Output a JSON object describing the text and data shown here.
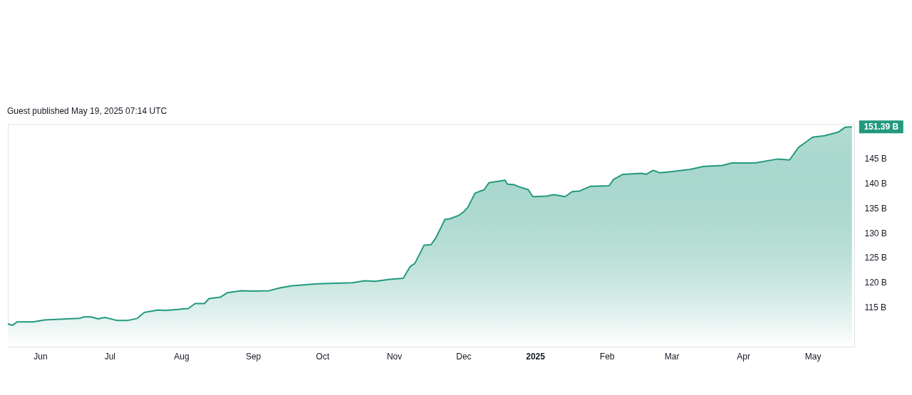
{
  "chart_data": {
    "type": "area",
    "annotations": [
      "Guest published May 19, 2025 07:14 UTC",
      {
        "text": "151.39 B",
        "x": "2025-05-18",
        "y": 151.39
      }
    ],
    "x": [
      "2024-05-18",
      "2024-05-20",
      "2024-05-22",
      "2024-05-29",
      "2024-06-03",
      "2024-06-18",
      "2024-06-20",
      "2024-06-23",
      "2024-06-26",
      "2024-06-29",
      "2024-07-04",
      "2024-07-09",
      "2024-07-13",
      "2024-07-16",
      "2024-07-22",
      "2024-07-25",
      "2024-08-04",
      "2024-08-07",
      "2024-08-11",
      "2024-08-13",
      "2024-08-18",
      "2024-08-21",
      "2024-08-27",
      "2024-09-01",
      "2024-09-08",
      "2024-09-13",
      "2024-09-18",
      "2024-09-29",
      "2024-10-14",
      "2024-10-19",
      "2024-10-24",
      "2024-10-30",
      "2024-11-05",
      "2024-11-08",
      "2024-11-10",
      "2024-11-14",
      "2024-11-17",
      "2024-11-19",
      "2024-11-23",
      "2024-11-25",
      "2024-11-29",
      "2024-12-01",
      "2024-12-03",
      "2024-12-06",
      "2024-12-10",
      "2024-12-12",
      "2024-12-16",
      "2024-12-19",
      "2024-12-20",
      "2024-12-23",
      "2024-12-25",
      "2024-12-29",
      "2024-12-31",
      "2025-01-06",
      "2025-01-09",
      "2025-01-14",
      "2025-01-17",
      "2025-01-20",
      "2025-01-25",
      "2025-02-02",
      "2025-02-04",
      "2025-02-08",
      "2025-02-16",
      "2025-02-18",
      "2025-02-21",
      "2025-02-24",
      "2025-02-28",
      "2025-03-09",
      "2025-03-15",
      "2025-03-23",
      "2025-03-27",
      "2025-04-06",
      "2025-04-16",
      "2025-04-21",
      "2025-04-25",
      "2025-04-28",
      "2025-05-01",
      "2025-05-06",
      "2025-05-12",
      "2025-05-15",
      "2025-05-18"
    ],
    "series": [
      {
        "color": "#22997e",
        "values": [
          111.6,
          111.3,
          112.0,
          112.0,
          112.4,
          112.7,
          113.0,
          113.0,
          112.6,
          112.9,
          112.3,
          112.3,
          112.7,
          113.9,
          114.4,
          114.3,
          114.7,
          115.7,
          115.7,
          116.7,
          117.0,
          117.9,
          118.3,
          118.2,
          118.3,
          118.9,
          119.3,
          119.7,
          119.9,
          120.3,
          120.2,
          120.6,
          120.8,
          123.2,
          123.8,
          127.5,
          127.6,
          128.9,
          132.7,
          132.8,
          133.5,
          134.2,
          135.2,
          138.0,
          138.7,
          140.1,
          140.4,
          140.6,
          139.8,
          139.7,
          139.3,
          138.7,
          137.3,
          137.4,
          137.7,
          137.3,
          138.3,
          138.4,
          139.4,
          139.5,
          140.8,
          141.8,
          142.0,
          141.8,
          142.6,
          142.1,
          142.3,
          142.8,
          143.4,
          143.6,
          144.1,
          144.1,
          144.9,
          144.7,
          147.3,
          148.3,
          149.3,
          149.6,
          150.3,
          151.3,
          151.39
        ]
      }
    ],
    "xlim": [
      "2024-05-18",
      "2025-05-19"
    ],
    "xticks": [
      {
        "value": "2024-06-01",
        "label": "Jun"
      },
      {
        "value": "2024-07-01",
        "label": "Jul"
      },
      {
        "value": "2024-08-01",
        "label": "Aug"
      },
      {
        "value": "2024-09-01",
        "label": "Sep"
      },
      {
        "value": "2024-10-01",
        "label": "Oct"
      },
      {
        "value": "2024-11-01",
        "label": "Nov"
      },
      {
        "value": "2024-12-01",
        "label": "Dec"
      },
      {
        "value": "2025-01-01",
        "label": "2025"
      },
      {
        "value": "2025-02-01",
        "label": "Feb"
      },
      {
        "value": "2025-03-01",
        "label": "Mar"
      },
      {
        "value": "2025-04-01",
        "label": "Apr"
      },
      {
        "value": "2025-05-01",
        "label": "May"
      }
    ],
    "ylim": [
      107,
      152
    ],
    "yticks": [
      {
        "value": 115,
        "label": "115 B"
      },
      {
        "value": 120,
        "label": "120 B"
      },
      {
        "value": 125,
        "label": "125 B"
      },
      {
        "value": 130,
        "label": "130 B"
      },
      {
        "value": 135,
        "label": "135 B"
      },
      {
        "value": 140,
        "label": "140 B"
      },
      {
        "value": 145,
        "label": "145 B"
      }
    ],
    "grid": false
  }
}
